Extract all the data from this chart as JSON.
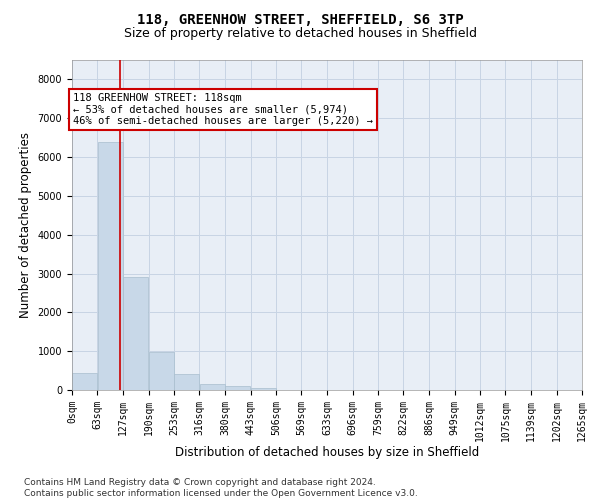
{
  "title_line1": "118, GREENHOW STREET, SHEFFIELD, S6 3TP",
  "title_line2": "Size of property relative to detached houses in Sheffield",
  "xlabel": "Distribution of detached houses by size in Sheffield",
  "ylabel": "Number of detached properties",
  "footer_line1": "Contains HM Land Registry data © Crown copyright and database right 2024.",
  "footer_line2": "Contains public sector information licensed under the Open Government Licence v3.0.",
  "annotation_line1": "118 GREENHOW STREET: 118sqm",
  "annotation_line2": "← 53% of detached houses are smaller (5,974)",
  "annotation_line3": "46% of semi-detached houses are larger (5,220) →",
  "property_size_sqm": 118,
  "bar_edges": [
    0,
    63,
    127,
    190,
    253,
    316,
    380,
    443,
    506,
    569,
    633,
    696,
    759,
    822,
    886,
    949,
    1012,
    1075,
    1139,
    1202,
    1265
  ],
  "bar_heights": [
    430,
    6380,
    2920,
    970,
    420,
    160,
    100,
    60,
    0,
    0,
    0,
    0,
    0,
    0,
    0,
    0,
    0,
    0,
    0,
    0
  ],
  "bar_color": "#c8d8e8",
  "bar_edgecolor": "#a8bece",
  "vline_color": "#cc0000",
  "vline_x": 118,
  "ylim": [
    0,
    8500
  ],
  "yticks": [
    0,
    1000,
    2000,
    3000,
    4000,
    5000,
    6000,
    7000,
    8000
  ],
  "grid_color": "#c8d4e4",
  "background_color": "#e8eef6",
  "annotation_box_edgecolor": "#cc0000",
  "title_fontsize": 10,
  "subtitle_fontsize": 9,
  "axis_label_fontsize": 8.5,
  "tick_fontsize": 7,
  "annotation_fontsize": 7.5,
  "footer_fontsize": 6.5
}
